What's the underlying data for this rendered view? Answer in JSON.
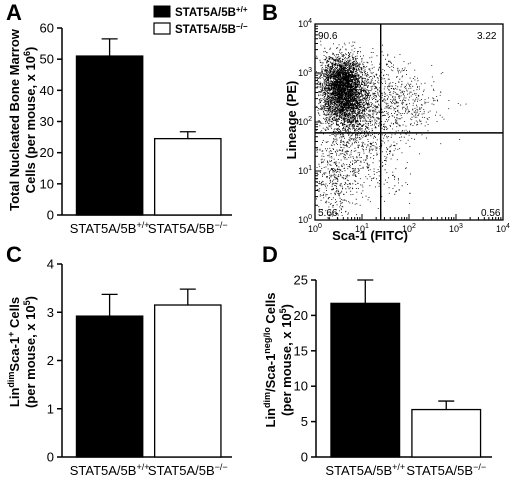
{
  "panels": [
    "A",
    "B",
    "C",
    "D"
  ],
  "legend": [
    {
      "label": "STAT5A/5B+/+",
      "fill": "#000000"
    },
    {
      "label": "STAT5A/5B−/−",
      "fill": "#ffffff"
    }
  ],
  "chart_data": [
    {
      "panel": "A",
      "type": "bar",
      "categories": [
        "STAT5A/5B+/+",
        "STAT5A/5B−/−"
      ],
      "values": [
        51,
        24.5
      ],
      "errors": [
        5.5,
        2.2
      ],
      "fills": [
        "#000000",
        "#ffffff"
      ],
      "ylabel_lines": [
        "Total Nucleated Bone Marrow",
        "Cells (per mouse, x 10⁶)"
      ],
      "ylim": [
        0,
        60
      ],
      "yticks": [
        0,
        10,
        20,
        30,
        40,
        50,
        60
      ]
    },
    {
      "panel": "B",
      "type": "scatter",
      "xlabel": "Sca-1 (FITC)",
      "ylabel": "Lineage (PE)",
      "xscale": "log",
      "yscale": "log",
      "xlim": [
        1,
        10000
      ],
      "ylim": [
        1,
        10000
      ],
      "tick_labels": [
        "10⁰",
        "10¹",
        "10²",
        "10³",
        "10⁴"
      ],
      "gate_x": 25,
      "gate_y": 60,
      "quadrants": {
        "top_left": "90.6",
        "top_right": "3.22",
        "bottom_left": "5.66",
        "bottom_right": "0.56"
      }
    },
    {
      "panel": "C",
      "type": "bar",
      "categories": [
        "STAT5A/5B+/+",
        "STAT5A/5B−/−"
      ],
      "values": [
        2.92,
        3.15
      ],
      "errors": [
        0.45,
        0.33
      ],
      "fills": [
        "#000000",
        "#ffffff"
      ],
      "ylabel_lines": [
        "LindimSca-1+ Cells",
        "(per mouse, x 10⁵)"
      ],
      "ylim": [
        0,
        4
      ],
      "yticks": [
        0,
        1,
        2,
        3,
        4
      ]
    },
    {
      "panel": "D",
      "type": "bar",
      "categories": [
        "STAT5A/5B+/+",
        "STAT5A/5B−/−"
      ],
      "values": [
        21.7,
        6.7
      ],
      "errors": [
        3.3,
        1.2
      ],
      "fills": [
        "#000000",
        "#ffffff"
      ],
      "ylabel_lines": [
        "Lindim/Sca-1neg/lo Cells",
        "(per mouse, x 10⁵)"
      ],
      "ylim": [
        0,
        25
      ],
      "yticks": [
        0,
        5,
        10,
        15,
        20,
        25
      ]
    }
  ]
}
